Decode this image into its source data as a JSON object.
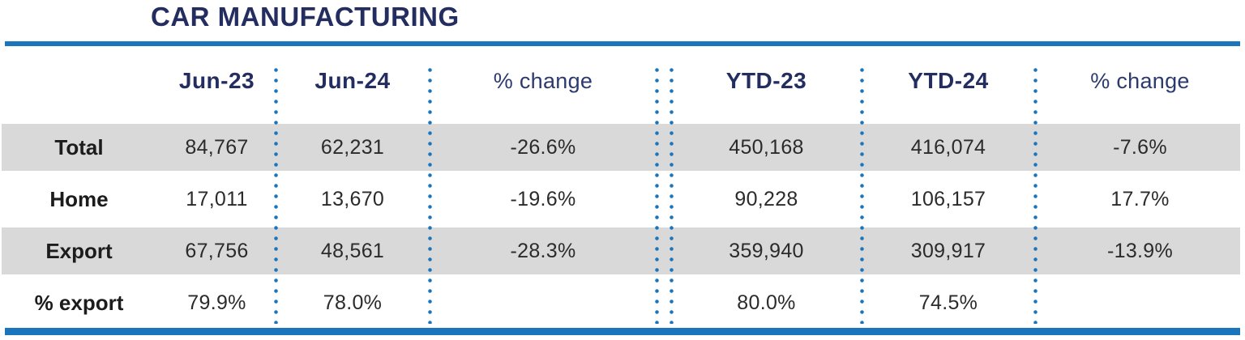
{
  "title": "CAR MANUFACTURING",
  "colors": {
    "navy": "#232d5f",
    "navyLight": "#2c3a6e",
    "accent": "#1b75bc",
    "band": "#d9d9d9",
    "labelText": "#1c1c1c",
    "valueText": "#2b2b2b"
  },
  "table": {
    "header": {
      "label": "",
      "jun23": "Jun-23",
      "jun24": "Jun-24",
      "pct1": "% change",
      "ytd23": "YTD-23",
      "ytd24": "YTD-24",
      "pct2": "% change"
    },
    "rows": [
      {
        "label": "Total",
        "jun23": "84,767",
        "jun24": "62,231",
        "pct1": "-26.6%",
        "ytd23": "450,168",
        "ytd24": "416,074",
        "pct2": "-7.6%"
      },
      {
        "label": "Home",
        "jun23": "17,011",
        "jun24": "13,670",
        "pct1": "-19.6%",
        "ytd23": "90,228",
        "ytd24": "106,157",
        "pct2": "17.7%"
      },
      {
        "label": "Export",
        "jun23": "67,756",
        "jun24": "48,561",
        "pct1": "-28.3%",
        "ytd23": "359,940",
        "ytd24": "309,917",
        "pct2": "-13.9%"
      },
      {
        "label": "% export",
        "jun23": "79.9%",
        "jun24": "78.0%",
        "pct1": "",
        "ytd23": "80.0%",
        "ytd24": "74.5%",
        "pct2": ""
      }
    ]
  },
  "chart_data": {
    "type": "table",
    "title": "CAR MANUFACTURING",
    "columns": [
      "",
      "Jun-23",
      "Jun-24",
      "% change",
      "YTD-23",
      "YTD-24",
      "% change"
    ],
    "rows": [
      [
        "Total",
        84767,
        62231,
        "-26.6%",
        450168,
        416074,
        "-7.6%"
      ],
      [
        "Home",
        17011,
        13670,
        "-19.6%",
        90228,
        106157,
        "17.7%"
      ],
      [
        "Export",
        67756,
        48561,
        "-28.3%",
        359940,
        309917,
        "-13.9%"
      ],
      [
        "% export",
        "79.9%",
        "78.0%",
        "",
        "80.0%",
        "74.5%",
        ""
      ]
    ],
    "layout": {
      "striped_rows": [
        "Total",
        "Export"
      ],
      "separators": "blue dotted vertical lines between value columns, double dotted divider between monthly and YTD halves",
      "top_rule": true,
      "bottom_rule": true
    }
  }
}
